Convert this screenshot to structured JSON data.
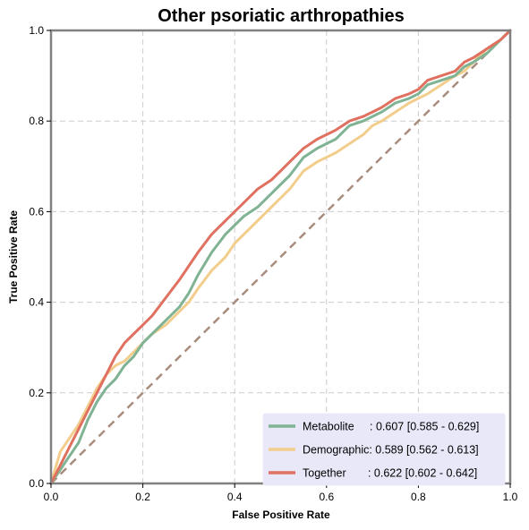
{
  "chart_data": {
    "type": "line",
    "title": "Other psoriatic arthropathies",
    "xlabel": "False Positive Rate",
    "ylabel": "True Positive Rate",
    "xlim": [
      0,
      1
    ],
    "ylim": [
      0,
      1
    ],
    "xticks": [
      "0.0",
      "0.2",
      "0.4",
      "0.6",
      "0.8",
      "1.0"
    ],
    "yticks": [
      "0.0",
      "0.2",
      "0.4",
      "0.6",
      "0.8",
      "1.0"
    ],
    "grid": true,
    "legend_position": "lower-right",
    "series": [
      {
        "name": "Metabolite",
        "legend_label": "Metabolite     : 0.607 [0.585 - 0.629]",
        "color": "#7fb394",
        "x": [
          0.0,
          0.02,
          0.04,
          0.06,
          0.08,
          0.1,
          0.12,
          0.14,
          0.16,
          0.18,
          0.2,
          0.22,
          0.25,
          0.28,
          0.3,
          0.32,
          0.35,
          0.38,
          0.4,
          0.42,
          0.45,
          0.48,
          0.5,
          0.52,
          0.55,
          0.58,
          0.6,
          0.62,
          0.65,
          0.68,
          0.7,
          0.72,
          0.75,
          0.78,
          0.8,
          0.82,
          0.85,
          0.88,
          0.9,
          0.92,
          0.95,
          0.98,
          1.0
        ],
        "y": [
          0.0,
          0.03,
          0.06,
          0.09,
          0.14,
          0.18,
          0.21,
          0.23,
          0.26,
          0.28,
          0.31,
          0.33,
          0.36,
          0.39,
          0.42,
          0.46,
          0.51,
          0.55,
          0.57,
          0.59,
          0.61,
          0.64,
          0.66,
          0.68,
          0.72,
          0.74,
          0.75,
          0.76,
          0.79,
          0.8,
          0.81,
          0.82,
          0.84,
          0.85,
          0.86,
          0.88,
          0.89,
          0.9,
          0.92,
          0.93,
          0.95,
          0.98,
          1.0
        ]
      },
      {
        "name": "Demographic",
        "legend_label": "Demographic: 0.589 [0.562 - 0.613]",
        "color": "#f2cd8b",
        "x": [
          0.0,
          0.02,
          0.04,
          0.06,
          0.08,
          0.1,
          0.12,
          0.14,
          0.16,
          0.18,
          0.2,
          0.22,
          0.25,
          0.28,
          0.3,
          0.32,
          0.35,
          0.38,
          0.4,
          0.42,
          0.45,
          0.48,
          0.5,
          0.52,
          0.55,
          0.58,
          0.6,
          0.62,
          0.65,
          0.68,
          0.7,
          0.72,
          0.75,
          0.78,
          0.8,
          0.82,
          0.85,
          0.88,
          0.9,
          0.92,
          0.95,
          0.98,
          1.0
        ],
        "y": [
          0.0,
          0.07,
          0.1,
          0.13,
          0.17,
          0.21,
          0.24,
          0.26,
          0.27,
          0.29,
          0.31,
          0.33,
          0.35,
          0.38,
          0.4,
          0.43,
          0.47,
          0.5,
          0.53,
          0.55,
          0.58,
          0.61,
          0.63,
          0.65,
          0.69,
          0.71,
          0.72,
          0.73,
          0.75,
          0.77,
          0.79,
          0.8,
          0.82,
          0.84,
          0.85,
          0.86,
          0.88,
          0.9,
          0.91,
          0.93,
          0.96,
          0.98,
          1.0
        ]
      },
      {
        "name": "Together",
        "legend_label": "Together       : 0.622 [0.602 - 0.642]",
        "color": "#e07060",
        "x": [
          0.0,
          0.02,
          0.04,
          0.06,
          0.08,
          0.1,
          0.12,
          0.14,
          0.16,
          0.18,
          0.2,
          0.22,
          0.25,
          0.28,
          0.3,
          0.32,
          0.35,
          0.38,
          0.4,
          0.42,
          0.45,
          0.48,
          0.5,
          0.52,
          0.55,
          0.58,
          0.6,
          0.62,
          0.65,
          0.68,
          0.7,
          0.72,
          0.75,
          0.78,
          0.8,
          0.82,
          0.85,
          0.88,
          0.9,
          0.92,
          0.95,
          0.98,
          1.0
        ],
        "y": [
          0.0,
          0.04,
          0.08,
          0.12,
          0.16,
          0.2,
          0.24,
          0.28,
          0.31,
          0.33,
          0.35,
          0.37,
          0.41,
          0.45,
          0.48,
          0.51,
          0.55,
          0.58,
          0.6,
          0.62,
          0.65,
          0.67,
          0.69,
          0.71,
          0.74,
          0.76,
          0.77,
          0.78,
          0.8,
          0.81,
          0.82,
          0.83,
          0.85,
          0.86,
          0.87,
          0.89,
          0.9,
          0.91,
          0.93,
          0.94,
          0.96,
          0.98,
          1.0
        ]
      }
    ],
    "reference_line": {
      "x": [
        0,
        1
      ],
      "y": [
        0,
        1
      ],
      "color": "#a88c7d",
      "style": "dashed"
    }
  }
}
